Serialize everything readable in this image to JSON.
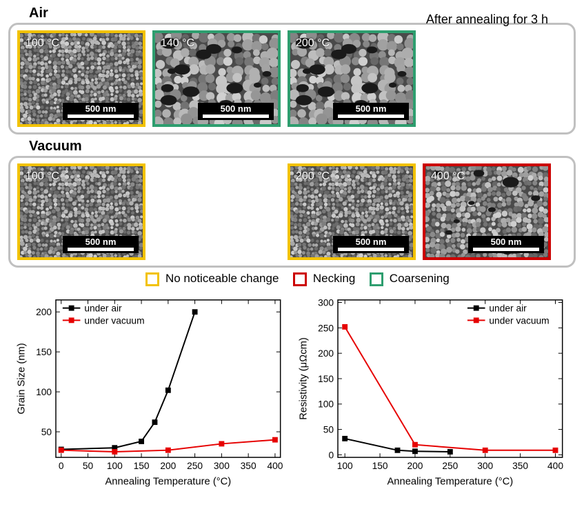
{
  "header": {
    "air_label": "Air",
    "vacuum_label": "Vacuum",
    "top_note": "After annealing for 3 h"
  },
  "colors": {
    "no_change": "#f2c200",
    "necking": "#cc0000",
    "coarsening": "#2e9e6f",
    "panel_border": "#c0c0c0",
    "series_air": "#000000",
    "series_vac": "#e60000",
    "axis": "#000000"
  },
  "legend": {
    "no_change": "No noticeable change",
    "necking": "Necking",
    "coarsening": "Coarsening"
  },
  "sem": {
    "scalebar_label": "500 nm",
    "air": [
      {
        "temp_c": 100,
        "category": "no_change"
      },
      {
        "temp_c": 140,
        "category": "coarsening"
      },
      {
        "temp_c": 200,
        "category": "coarsening"
      }
    ],
    "vacuum": [
      {
        "temp_c": 100,
        "category": "no_change"
      },
      {
        "temp_c": 200,
        "category": "no_change"
      },
      {
        "temp_c": 400,
        "category": "necking"
      }
    ]
  },
  "chart_grain": {
    "type": "line+scatter",
    "xlabel": "Annealing Temperature (°C)",
    "ylabel": "Grain Size (nm)",
    "xlim": [
      -10,
      410
    ],
    "ylim": [
      18,
      215
    ],
    "xticks": [
      0,
      50,
      100,
      150,
      200,
      250,
      300,
      350,
      400
    ],
    "yticks": [
      50,
      100,
      150,
      200
    ],
    "legend_pos": "top-left",
    "series": [
      {
        "name": "under air",
        "color": "#000000",
        "marker": "square",
        "points": [
          [
            0,
            28
          ],
          [
            100,
            30
          ],
          [
            150,
            38
          ],
          [
            175,
            62
          ],
          [
            200,
            102
          ],
          [
            250,
            200
          ]
        ]
      },
      {
        "name": "under vacuum",
        "color": "#e60000",
        "marker": "square",
        "points": [
          [
            0,
            27
          ],
          [
            100,
            25
          ],
          [
            200,
            27
          ],
          [
            300,
            35
          ],
          [
            400,
            40
          ]
        ]
      }
    ]
  },
  "chart_resist": {
    "type": "line+scatter",
    "xlabel": "Annealing Temperature (°C)",
    "ylabel": "Resistivity (μΩcm)",
    "xlim": [
      90,
      410
    ],
    "ylim": [
      -5,
      305
    ],
    "xticks": [
      100,
      150,
      200,
      250,
      300,
      350,
      400
    ],
    "yticks": [
      0,
      50,
      100,
      150,
      200,
      250,
      300
    ],
    "legend_pos": "top-right",
    "series": [
      {
        "name": "under air",
        "color": "#000000",
        "marker": "square",
        "points": [
          [
            100,
            32
          ],
          [
            175,
            9
          ],
          [
            200,
            7
          ],
          [
            250,
            6
          ]
        ]
      },
      {
        "name": "under vacuum",
        "color": "#e60000",
        "marker": "square",
        "points": [
          [
            100,
            252
          ],
          [
            200,
            20
          ],
          [
            300,
            9
          ],
          [
            400,
            9
          ]
        ]
      }
    ]
  }
}
